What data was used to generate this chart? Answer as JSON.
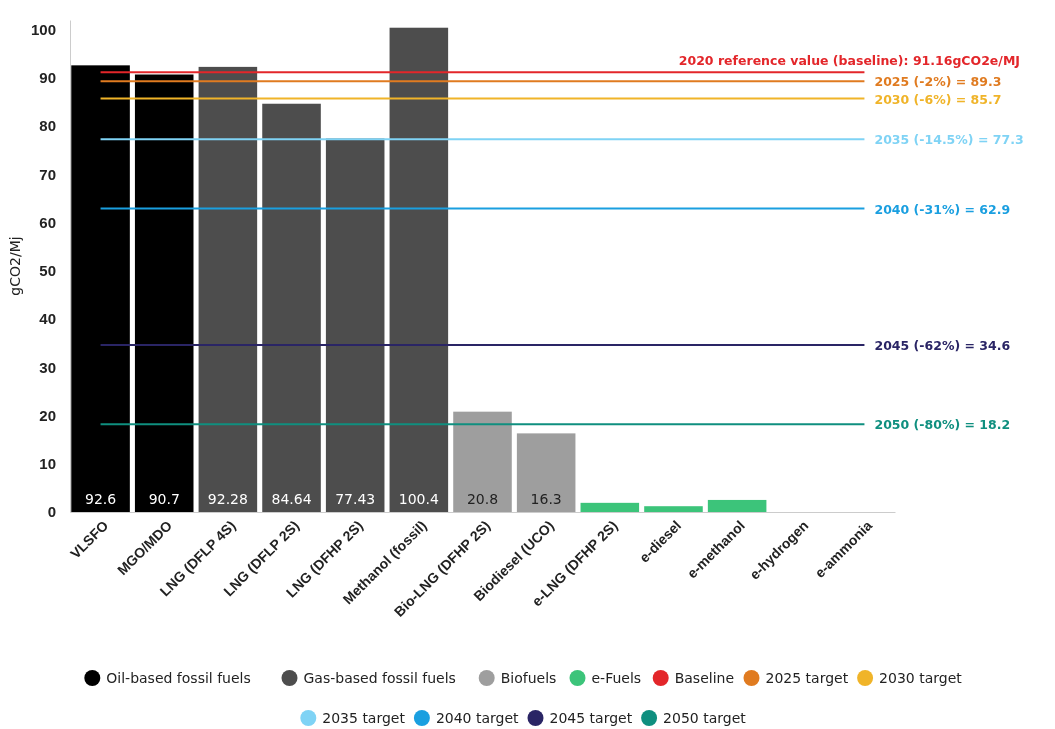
{
  "chart_data": {
    "type": "bar",
    "ylabel": "gCO2/Mj",
    "categories": [
      "VLSFO",
      "MGO/MDO",
      "LNG (DFLP 4S)",
      "LNG (DFLP 2S)",
      "LNG (DFHP 2S)",
      "Methanol (fossil)",
      "Bio-LNG (DFHP 2S)",
      "Biodiesel (UCO)",
      "e-LNG (DFHP 2S)",
      "e-diesel",
      "e-methanol",
      "e-hydrogen",
      "e-ammonia"
    ],
    "ylim": [
      0,
      102
    ],
    "yticks": [
      0,
      10,
      20,
      30,
      40,
      50,
      60,
      70,
      80,
      90,
      100
    ],
    "grid": false,
    "legend": "bottom",
    "series": [
      {
        "name": "Oil-based fossil fuels",
        "color": "#000000",
        "values": [
          92.6,
          90.7,
          null,
          null,
          null,
          null,
          null,
          null,
          null,
          null,
          null,
          null,
          null
        ],
        "value_labels": [
          "92.6",
          "90.7",
          null,
          null,
          null,
          null,
          null,
          null,
          null,
          null,
          null,
          null,
          null
        ]
      },
      {
        "name": "Gas-based fossil fuels",
        "color": "#4d4d4d",
        "values": [
          null,
          null,
          92.28,
          84.64,
          77.43,
          100.4,
          null,
          null,
          null,
          null,
          null,
          null,
          null
        ],
        "value_labels": [
          null,
          null,
          "92.28",
          "84.64",
          "77.43",
          "100.4",
          null,
          null,
          null,
          null,
          null,
          null,
          null
        ]
      },
      {
        "name": "Biofuels",
        "color": "#9e9e9e",
        "values": [
          null,
          null,
          null,
          null,
          null,
          null,
          20.8,
          16.3,
          null,
          null,
          null,
          null,
          null
        ],
        "value_labels": [
          null,
          null,
          null,
          null,
          null,
          null,
          "20.8",
          "16.3",
          null,
          null,
          null,
          null,
          null
        ]
      },
      {
        "name": "e-Fuels",
        "color": "#3cc47a",
        "values": [
          null,
          null,
          null,
          null,
          null,
          null,
          null,
          null,
          1.9,
          1.2,
          2.5,
          0,
          0
        ]
      },
      {
        "name": "Baseline",
        "type": "line",
        "marker": "none",
        "color": "#e3262a",
        "values": [
          91.16,
          91.16,
          91.16,
          91.16,
          91.16,
          91.16,
          91.16,
          91.16,
          91.16,
          91.16,
          91.16,
          91.16,
          91.16
        ]
      },
      {
        "name": "2025 target",
        "type": "line",
        "marker": "none",
        "color": "#e07b20",
        "values": [
          89.3,
          89.3,
          89.3,
          89.3,
          89.3,
          89.3,
          89.3,
          89.3,
          89.3,
          89.3,
          89.3,
          89.3,
          89.3
        ]
      },
      {
        "name": "2030 target",
        "type": "line",
        "marker": "none",
        "color": "#f0b429",
        "values": [
          85.7,
          85.7,
          85.7,
          85.7,
          85.7,
          85.7,
          85.7,
          85.7,
          85.7,
          85.7,
          85.7,
          85.7,
          85.7
        ]
      },
      {
        "name": "2035 target",
        "type": "line",
        "marker": "none",
        "color": "#7fd3f5",
        "values": [
          77.3,
          77.3,
          77.3,
          77.3,
          77.3,
          77.3,
          77.3,
          77.3,
          77.3,
          77.3,
          77.3,
          77.3,
          77.3
        ]
      },
      {
        "name": "2040 target",
        "type": "line",
        "marker": "none",
        "color": "#1a9fe0",
        "values": [
          62.9,
          62.9,
          62.9,
          62.9,
          62.9,
          62.9,
          62.9,
          62.9,
          62.9,
          62.9,
          62.9,
          62.9,
          62.9
        ]
      },
      {
        "name": "2045 target",
        "type": "line",
        "marker": "none",
        "color": "#2a2565",
        "values": [
          34.6,
          34.6,
          34.6,
          34.6,
          34.6,
          34.6,
          34.6,
          34.6,
          34.6,
          34.6,
          34.6,
          34.6,
          34.6
        ]
      },
      {
        "name": "2050 target",
        "type": "line",
        "marker": "none",
        "color": "#0f8f7f",
        "values": [
          18.2,
          18.2,
          18.2,
          18.2,
          18.2,
          18.2,
          18.2,
          18.2,
          18.2,
          18.2,
          18.2,
          18.2,
          18.2
        ]
      }
    ],
    "annotations": [
      "2020 reference value (baseline): 91.16gCO2e/MJ",
      "2025 (-2%) = 89.3",
      "2030 (-6%) = 85.7",
      "2035 (-14.5%) = 77.3",
      "2040 (-31%) = 62.9",
      "2045 (-62%) = 34.6",
      "2050 (-80%) = 18.2"
    ]
  }
}
